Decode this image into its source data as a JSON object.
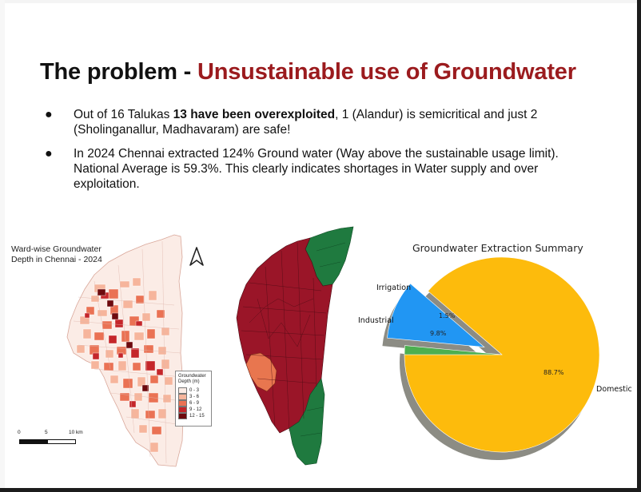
{
  "slide": {
    "title_prefix": "The problem - ",
    "title_accent": "Unsustainable use of Groundwater",
    "accent_color": "#9b1b1e",
    "bullets": [
      {
        "pre": "Out of 16 Talukas ",
        "bold": "13 have been overexploited",
        "post": ", 1 (Alandur) is semicritical and just 2 (Sholinganallur, Madhavaram) are safe!"
      },
      {
        "pre": "In 2024 Chennai extracted 124% Ground water (Way above the sustainable usage limit). National Average is 59.3%. This clearly indicates shortages in Water supply and over exploitation.",
        "bold": "",
        "post": ""
      }
    ],
    "bullet_glyph": "●"
  },
  "ward_map": {
    "title_line1": "Ward-wise Groundwater",
    "title_line2": "Depth in Chennai - 2024",
    "north_icon": "north-arrow-icon",
    "legend_title": "Groundwater Depth (m)",
    "legend": [
      {
        "label": "0 - 3",
        "color": "#fbece6"
      },
      {
        "label": "3 - 6",
        "color": "#f6b59c"
      },
      {
        "label": "6 - 9",
        "color": "#ea7254"
      },
      {
        "label": "9 - 12",
        "color": "#c5262a"
      },
      {
        "label": "12 - 15",
        "color": "#6d0a0e"
      }
    ],
    "scale": {
      "l0": "0",
      "l1": "5",
      "l2": "10 km"
    }
  },
  "taluka_map": {
    "colors": {
      "overexploited": "#9a1528",
      "semicritical": "#e8764f",
      "safe": "#1f7a3f"
    }
  },
  "chart_data": {
    "type": "pie",
    "title": "Groundwater Extraction Summary",
    "categories": [
      "Domestic",
      "Industrial",
      "Irrigation"
    ],
    "values": [
      88.7,
      9.8,
      1.5
    ],
    "labels": [
      "88.7%",
      "9.8%",
      "1.5%"
    ],
    "colors": [
      "#fdbb0c",
      "#2196f3",
      "#4caf50"
    ],
    "exploded": "Industrial",
    "shadow": true
  }
}
